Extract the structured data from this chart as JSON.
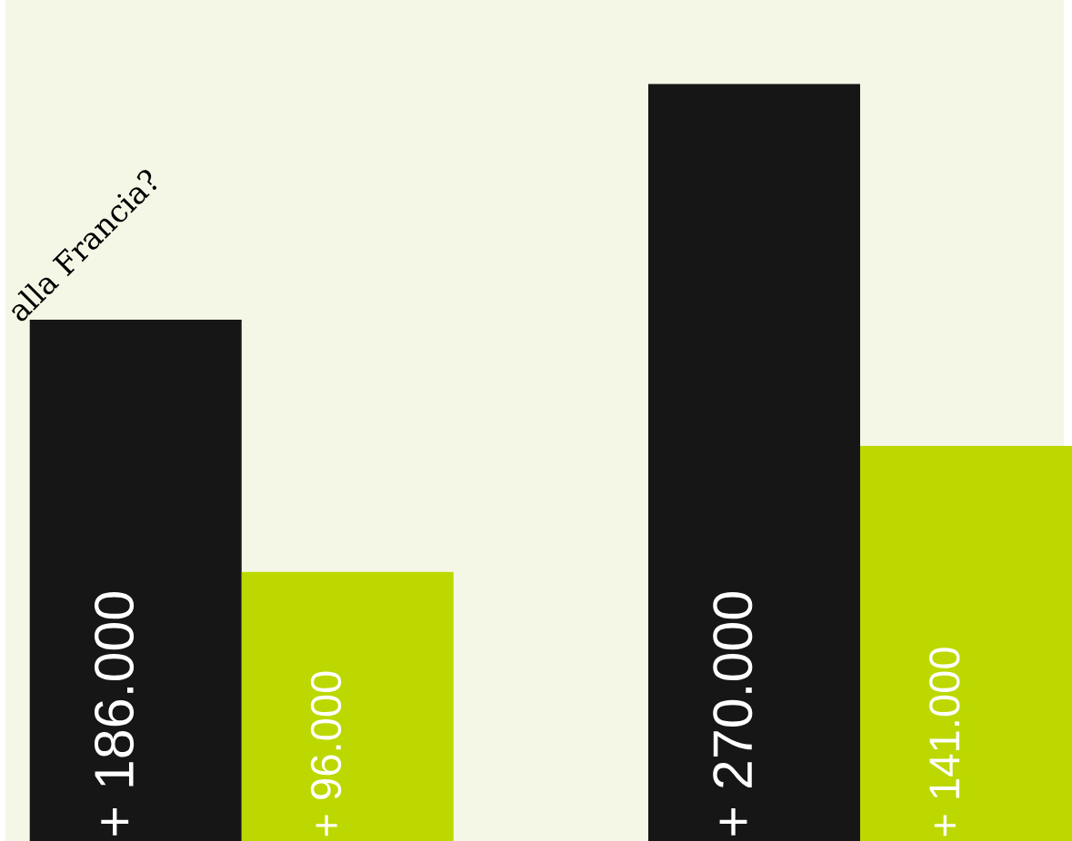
{
  "chart_data": {
    "type": "bar",
    "categories": [
      null,
      null
    ],
    "series": [
      {
        "color": "#161616",
        "values": [
          186000,
          270000
        ],
        "value_labels": [
          "+ 186.000",
          "+ 270.000"
        ]
      },
      {
        "color": "#bcd800",
        "values": [
          96000,
          141000
        ],
        "value_labels": [
          "+ 96.000",
          "+ 141.000"
        ]
      }
    ],
    "ylim": [
      0,
      300000
    ],
    "annotations": [
      "alla Francia?"
    ]
  }
}
